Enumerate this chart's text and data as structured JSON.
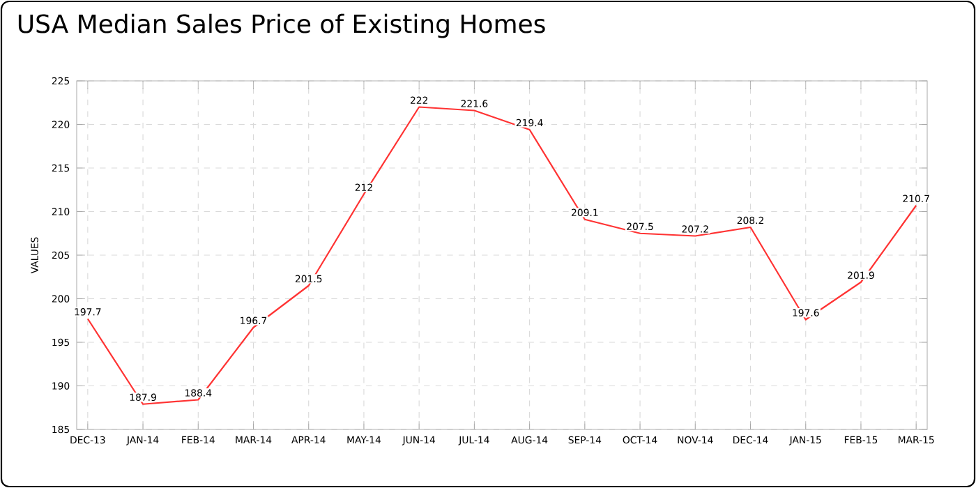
{
  "chart_data": {
    "type": "line",
    "title": "USA Median Sales Price of Existing Homes",
    "ylabel": "VALUES",
    "categories": [
      "DEC-13",
      "JAN-14",
      "FEB-14",
      "MAR-14",
      "APR-14",
      "MAY-14",
      "JUN-14",
      "JUL-14",
      "AUG-14",
      "SEP-14",
      "OCT-14",
      "NOV-14",
      "DEC-14",
      "JAN-15",
      "FEB-15",
      "MAR-15"
    ],
    "series": [
      {
        "color": "#ff3333",
        "values": [
          197.7,
          187.9,
          188.4,
          196.7,
          201.5,
          212,
          222,
          221.6,
          219.4,
          209.1,
          207.5,
          207.2,
          208.2,
          197.6,
          201.9,
          210.7
        ]
      }
    ],
    "ylim": [
      185,
      225
    ],
    "yticks": [
      185,
      190,
      195,
      200,
      205,
      210,
      215,
      220,
      225
    ],
    "grid": true,
    "data_labels": true,
    "marker": "none",
    "line_style": "solid"
  }
}
